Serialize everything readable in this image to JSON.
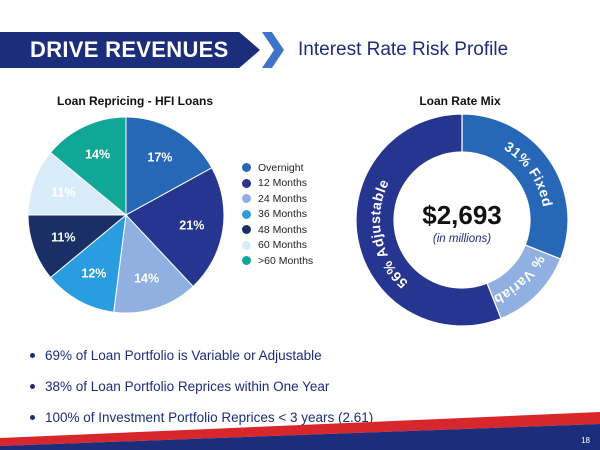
{
  "header": {
    "banner_title": "DRIVE REVENUES",
    "subtitle": "Interest Rate Risk Profile"
  },
  "chart_data": [
    {
      "type": "pie",
      "title": "Loan Repricing - HFI Loans",
      "categories": [
        "Overnight",
        "12 Months",
        "24 Months",
        "36 Months",
        "48 Months",
        "60 Months",
        ">60 Months"
      ],
      "values": [
        17,
        21,
        14,
        12,
        11,
        11,
        14
      ],
      "data_labels": [
        "17%",
        "21%",
        "14%",
        "12%",
        "11%",
        "11%",
        "14%"
      ],
      "colors": [
        "#2767b8",
        "#26358f",
        "#8fb0e0",
        "#2a9de0",
        "#1a2f66",
        "#d8ecfa",
        "#10a796"
      ],
      "label_colors": [
        "#ffffff",
        "#ffffff",
        "#ffffff",
        "#ffffff",
        "#ffffff",
        "#ffffff",
        "#ffffff"
      ],
      "legend_position": "right"
    },
    {
      "type": "pie",
      "subtype": "donut",
      "title": "Loan Rate Mix",
      "categories": [
        "Fixed",
        "Variable",
        "Adjustable"
      ],
      "values": [
        31,
        13,
        56
      ],
      "data_labels": [
        "31% Fixed",
        "13% Variable",
        "56% Adjustable"
      ],
      "colors": [
        "#2767b8",
        "#8fb0e0",
        "#26358f"
      ],
      "center_value": "$2,693",
      "center_note": "(in millions)"
    }
  ],
  "bullets": [
    "69% of Loan Portfolio is Variable or Adjustable",
    "38% of Loan Portfolio Reprices within One Year",
    "100% of Investment Portfolio Reprices < 3 years (2.61)"
  ],
  "footer": {
    "page_number": "18",
    "colors": {
      "navy": "#1c2d7c",
      "red": "#d7262c"
    }
  }
}
